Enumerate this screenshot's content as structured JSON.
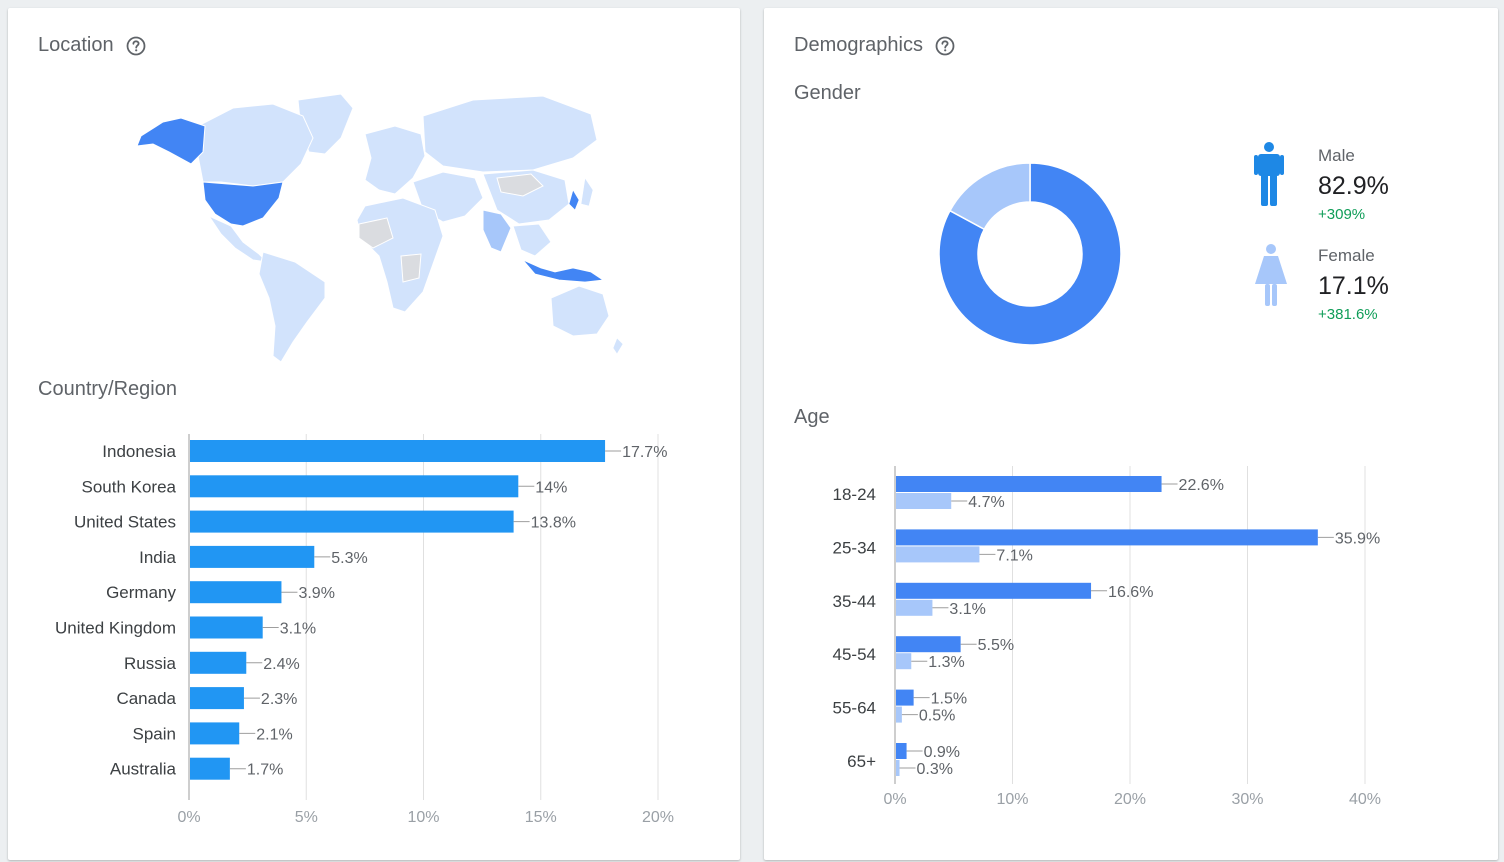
{
  "location": {
    "title": "Location",
    "country_section_title": "Country/Region"
  },
  "demographics": {
    "title": "Demographics",
    "gender_title": "Gender",
    "age_title": "Age",
    "gender": {
      "male_label": "Male",
      "male_value": "82.9%",
      "male_change": "+309%",
      "female_label": "Female",
      "female_value": "17.1%",
      "female_change": "+381.6%"
    }
  },
  "colors": {
    "bar_primary": "#2196f3",
    "age_primary": "#4285f4",
    "age_secondary": "#a7c7fa",
    "donut_male": "#4285f4",
    "donut_female": "#a7c7fa",
    "positive_change": "#0f9d58",
    "map_land": "#d2e3fc",
    "map_highlight": "#4285f4",
    "map_nodata": "#dadce0"
  },
  "chart_data": [
    {
      "type": "bar",
      "orientation": "horizontal",
      "title": "Country/Region",
      "categories": [
        "Indonesia",
        "South Korea",
        "United States",
        "India",
        "Germany",
        "United Kingdom",
        "Russia",
        "Canada",
        "Spain",
        "Australia"
      ],
      "values": [
        17.7,
        14,
        13.8,
        5.3,
        3.9,
        3.1,
        2.4,
        2.3,
        2.1,
        1.7
      ],
      "value_labels": [
        "17.7%",
        "14%",
        "13.8%",
        "5.3%",
        "3.9%",
        "3.1%",
        "2.4%",
        "2.3%",
        "2.1%",
        "1.7%"
      ],
      "xlim": [
        0,
        20
      ],
      "x_ticks": [
        "0%",
        "5%",
        "10%",
        "15%",
        "20%"
      ],
      "grid": true
    },
    {
      "type": "pie",
      "title": "Gender",
      "donut": true,
      "categories": [
        "Male",
        "Female"
      ],
      "values": [
        82.9,
        17.1
      ]
    },
    {
      "type": "bar",
      "orientation": "horizontal",
      "title": "Age",
      "categories": [
        "18-24",
        "25-34",
        "35-44",
        "45-54",
        "55-64",
        "65+"
      ],
      "series": [
        {
          "values": [
            22.6,
            35.9,
            16.6,
            5.5,
            1.5,
            0.9
          ],
          "labels": [
            "22.6%",
            "35.9%",
            "16.6%",
            "5.5%",
            "1.5%",
            "0.9%"
          ]
        },
        {
          "values": [
            4.7,
            7.1,
            3.1,
            1.3,
            0.5,
            0.3
          ],
          "labels": [
            "4.7%",
            "7.1%",
            "3.1%",
            "1.3%",
            "0.5%",
            "0.3%"
          ]
        }
      ],
      "xlim": [
        0,
        40
      ],
      "x_ticks": [
        "0%",
        "10%",
        "20%",
        "30%",
        "40%"
      ],
      "grid": true
    }
  ]
}
